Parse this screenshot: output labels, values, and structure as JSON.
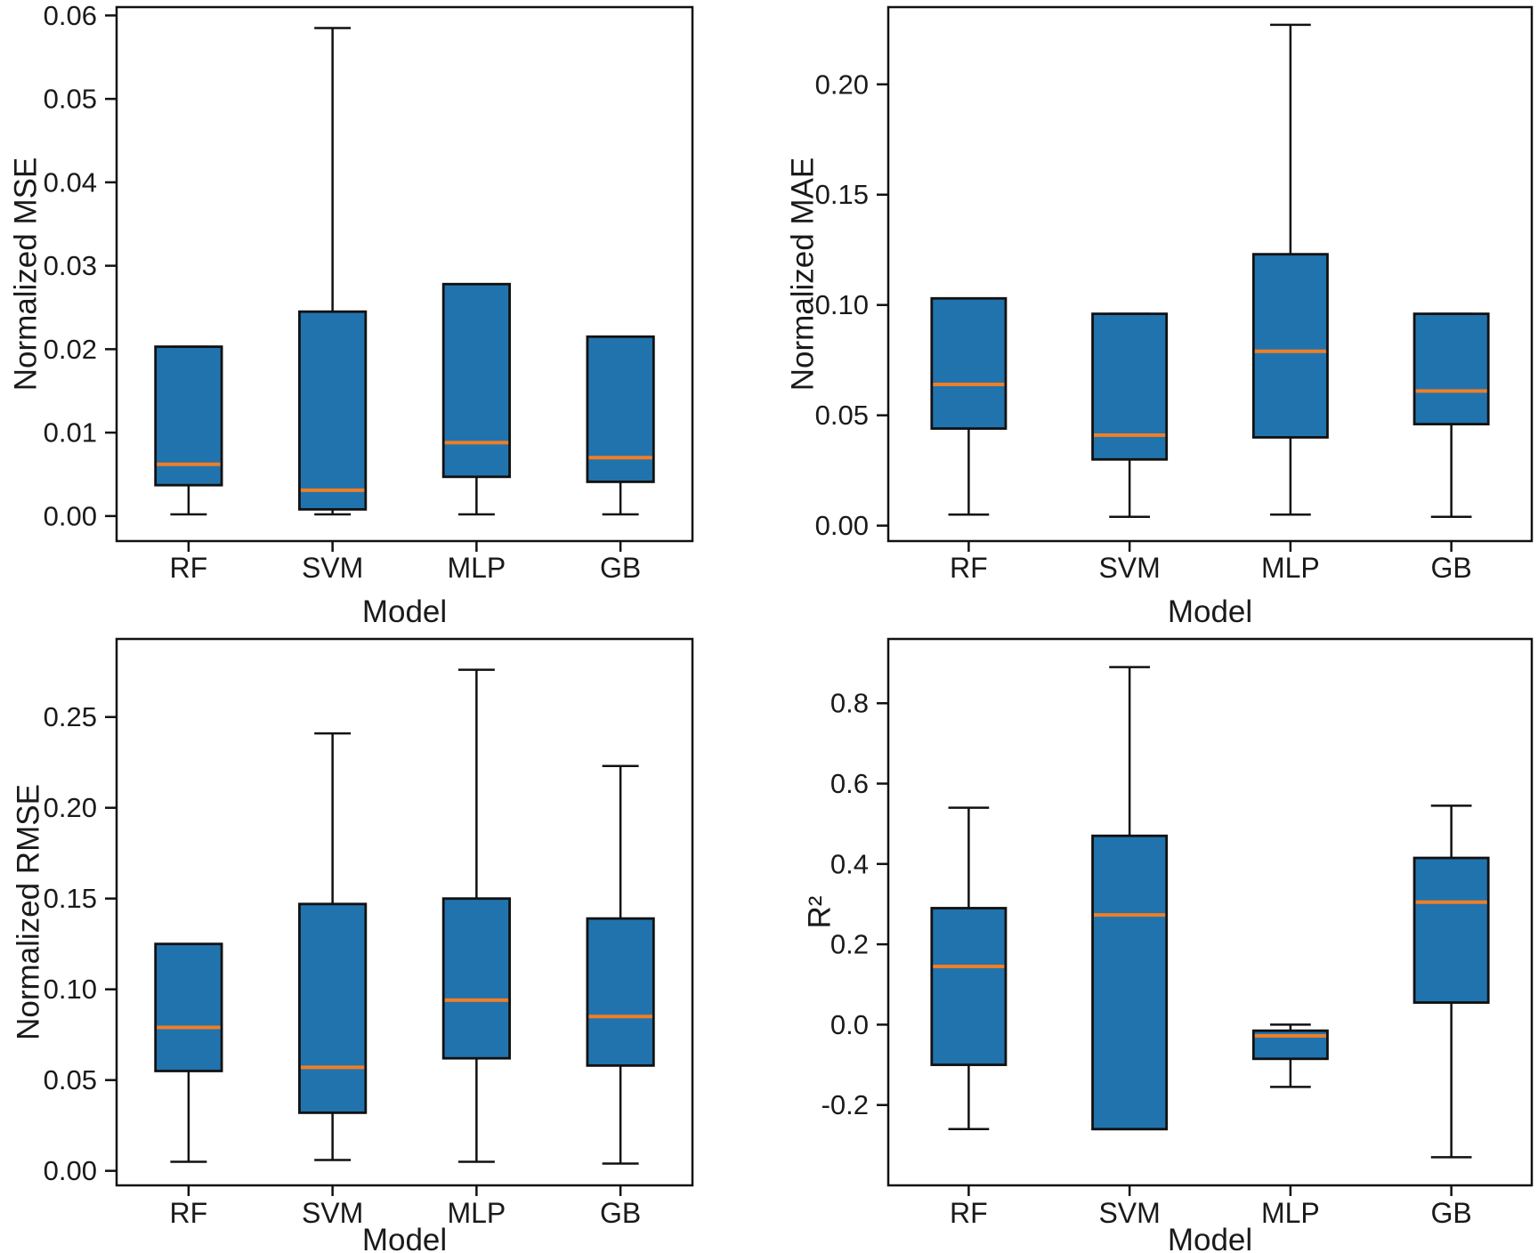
{
  "figure_title": "",
  "colors": {
    "box_fill": "#2173ad",
    "box_edge": "#111111",
    "median": "#f07e26",
    "whisker": "#111111",
    "axis": "#111111",
    "text": "#1a1a1a",
    "background": "#ffffff"
  },
  "chart_data": [
    {
      "type": "box",
      "title": "",
      "xlabel": "Model",
      "ylabel": "Normalized MSE",
      "categories": [
        "RF",
        "SVM",
        "MLP",
        "GB"
      ],
      "ylim": [
        -0.003,
        0.061
      ],
      "yticks": [
        0.0,
        0.01,
        0.02,
        0.03,
        0.04,
        0.05,
        0.06
      ],
      "ytick_labels": [
        "0.00",
        "0.01",
        "0.02",
        "0.03",
        "0.04",
        "0.05",
        "0.06"
      ],
      "grid": false,
      "legend": false,
      "series": [
        {
          "model": "RF",
          "whislo": 0.0002,
          "q1": 0.0037,
          "med": 0.0062,
          "q3": 0.0203,
          "whishi": 0.0203
        },
        {
          "model": "SVM",
          "whislo": 0.0002,
          "q1": 0.0008,
          "med": 0.0031,
          "q3": 0.0245,
          "whishi": 0.0585
        },
        {
          "model": "MLP",
          "whislo": 0.0002,
          "q1": 0.0047,
          "med": 0.0088,
          "q3": 0.0278,
          "whishi": 0.0278
        },
        {
          "model": "GB",
          "whislo": 0.0002,
          "q1": 0.0041,
          "med": 0.007,
          "q3": 0.0215,
          "whishi": 0.0215
        }
      ]
    },
    {
      "type": "box",
      "title": "",
      "xlabel": "Model",
      "ylabel": "Normalized MAE",
      "categories": [
        "RF",
        "SVM",
        "MLP",
        "GB"
      ],
      "ylim": [
        -0.007,
        0.235
      ],
      "yticks": [
        0.0,
        0.05,
        0.1,
        0.15,
        0.2
      ],
      "ytick_labels": [
        "0.00",
        "0.05",
        "0.10",
        "0.15",
        "0.20"
      ],
      "grid": false,
      "legend": false,
      "series": [
        {
          "model": "RF",
          "whislo": 0.005,
          "q1": 0.044,
          "med": 0.064,
          "q3": 0.103,
          "whishi": 0.103
        },
        {
          "model": "SVM",
          "whislo": 0.004,
          "q1": 0.03,
          "med": 0.041,
          "q3": 0.096,
          "whishi": 0.096
        },
        {
          "model": "MLP",
          "whislo": 0.005,
          "q1": 0.04,
          "med": 0.079,
          "q3": 0.123,
          "whishi": 0.227
        },
        {
          "model": "GB",
          "whislo": 0.004,
          "q1": 0.046,
          "med": 0.061,
          "q3": 0.096,
          "whishi": 0.096
        }
      ]
    },
    {
      "type": "box",
      "title": "",
      "xlabel": "Model",
      "ylabel": "Normalized RMSE",
      "categories": [
        "RF",
        "SVM",
        "MLP",
        "GB"
      ],
      "ylim": [
        -0.008,
        0.293
      ],
      "yticks": [
        0.0,
        0.05,
        0.1,
        0.15,
        0.2,
        0.25
      ],
      "ytick_labels": [
        "0.00",
        "0.05",
        "0.10",
        "0.15",
        "0.20",
        "0.25"
      ],
      "grid": false,
      "legend": false,
      "series": [
        {
          "model": "RF",
          "whislo": 0.005,
          "q1": 0.055,
          "med": 0.079,
          "q3": 0.125,
          "whishi": 0.125
        },
        {
          "model": "SVM",
          "whislo": 0.006,
          "q1": 0.032,
          "med": 0.057,
          "q3": 0.147,
          "whishi": 0.241
        },
        {
          "model": "MLP",
          "whislo": 0.005,
          "q1": 0.062,
          "med": 0.094,
          "q3": 0.15,
          "whishi": 0.276
        },
        {
          "model": "GB",
          "whislo": 0.004,
          "q1": 0.058,
          "med": 0.085,
          "q3": 0.139,
          "whishi": 0.223
        }
      ]
    },
    {
      "type": "box",
      "title": "",
      "xlabel": "Model",
      "ylabel": "R²",
      "categories": [
        "RF",
        "SVM",
        "MLP",
        "GB"
      ],
      "ylim": [
        -0.4,
        0.96
      ],
      "yticks": [
        -0.2,
        0.0,
        0.2,
        0.4,
        0.6,
        0.8
      ],
      "ytick_labels": [
        "-0.2",
        "0.0",
        "0.2",
        "0.4",
        "0.6",
        "0.8"
      ],
      "grid": false,
      "legend": false,
      "series": [
        {
          "model": "RF",
          "whislo": -0.26,
          "q1": -0.1,
          "med": 0.145,
          "q3": 0.29,
          "whishi": 0.54
        },
        {
          "model": "SVM",
          "whislo": -0.26,
          "q1": -0.26,
          "med": 0.273,
          "q3": 0.47,
          "whishi": 0.89
        },
        {
          "model": "MLP",
          "whislo": -0.155,
          "q1": -0.085,
          "med": -0.028,
          "q3": -0.015,
          "whishi": 0.0
        },
        {
          "model": "GB",
          "whislo": -0.33,
          "q1": 0.055,
          "med": 0.305,
          "q3": 0.415,
          "whishi": 0.545
        }
      ]
    }
  ]
}
